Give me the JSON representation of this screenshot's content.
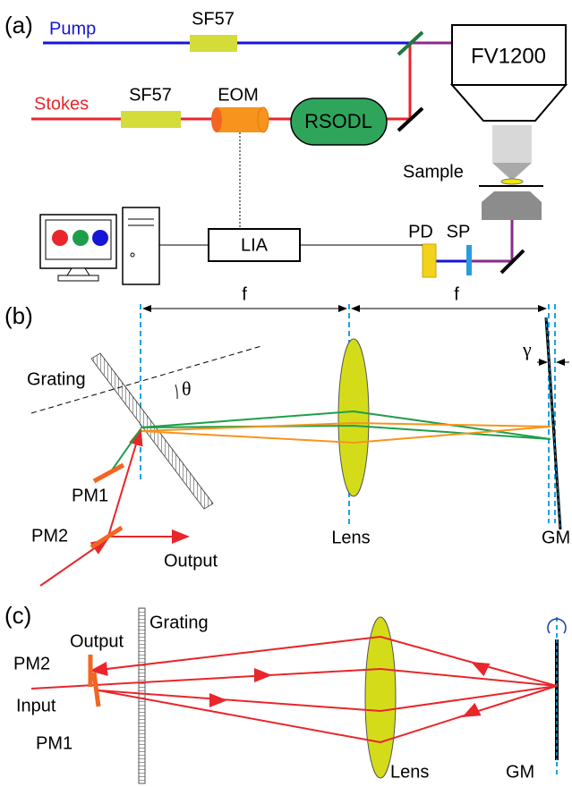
{
  "panel_a": {
    "label": "(a)",
    "pump": "Pump",
    "pump_filter": "SF57",
    "stokes": "Stokes",
    "stokes_filter": "SF57",
    "eom": "EOM",
    "rsodl": "RSODL",
    "microscope": "FV1200",
    "sample": "Sample",
    "lia": "LIA",
    "pd": "PD",
    "sp": "SP"
  },
  "panel_b": {
    "label": "(b)",
    "focal_left": "f",
    "focal_right": "f",
    "grating": "Grating",
    "theta": "θ",
    "gamma": "γ",
    "pm1": "PM1",
    "pm2": "PM2",
    "output": "Output",
    "lens": "Lens",
    "gm": "GM"
  },
  "panel_c": {
    "label": "(c)",
    "grating": "Grating",
    "output": "Output",
    "pm2": "PM2",
    "input": "Input",
    "pm1": "PM1",
    "lens": "Lens",
    "gm": "GM"
  }
}
